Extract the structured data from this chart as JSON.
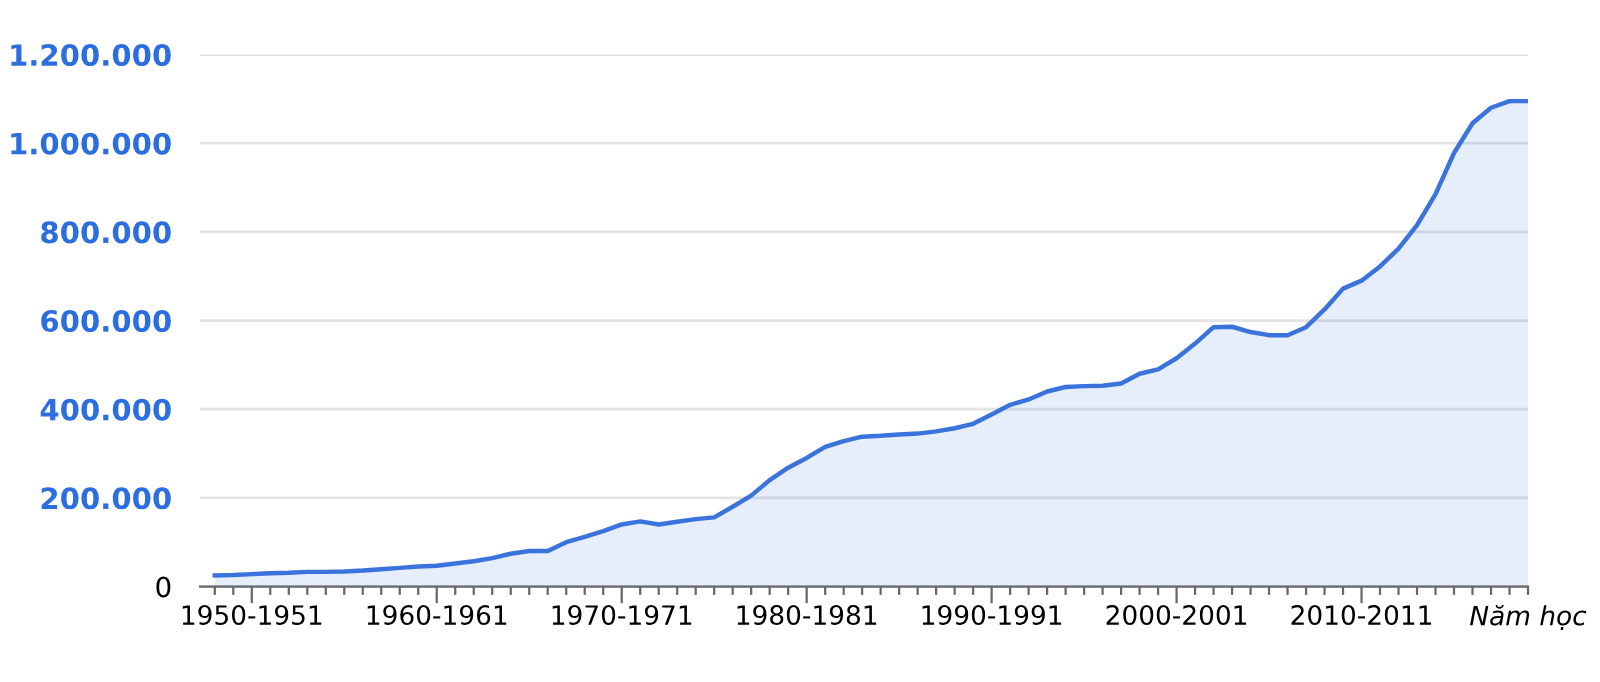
{
  "chart_data": {
    "type": "area",
    "xlabel": "Năm học",
    "categories": [
      null,
      null,
      "1950-1951",
      null,
      null,
      null,
      null,
      null,
      null,
      null,
      null,
      null,
      "1960-1961",
      null,
      null,
      null,
      null,
      null,
      null,
      null,
      null,
      null,
      "1970-1971",
      null,
      null,
      null,
      null,
      null,
      null,
      null,
      null,
      null,
      "1980-1981",
      null,
      null,
      null,
      null,
      null,
      null,
      null,
      null,
      null,
      "1990-1991",
      null,
      null,
      null,
      null,
      null,
      null,
      null,
      null,
      null,
      "2000-2001",
      null,
      null,
      null,
      null,
      null,
      null,
      null,
      null,
      null,
      "2010-2011",
      null,
      null,
      null,
      null,
      null,
      null,
      null,
      null,
      null
    ],
    "series": [
      {
        "color": "#3b73dd",
        "values": [
          25000,
          26000,
          28000,
          30000,
          31000,
          33000,
          33000,
          34000,
          36000,
          39000,
          42000,
          45000,
          47000,
          52000,
          57000,
          64000,
          74000,
          80000,
          80000,
          100000,
          112000,
          125000,
          140000,
          147000,
          140000,
          146000,
          152000,
          156000,
          180000,
          205000,
          240000,
          268000,
          290000,
          315000,
          328000,
          338000,
          340000,
          343000,
          345000,
          350000,
          357000,
          367000,
          388000,
          410000,
          422000,
          440000,
          450000,
          452000,
          453000,
          458000,
          480000,
          490000,
          515000,
          548000,
          585000,
          586000,
          574000,
          567000,
          567000,
          585000,
          625000,
          672000,
          690000,
          722000,
          762000,
          815000,
          885000,
          978000,
          1045000,
          1080000,
          1095000,
          1095000
        ]
      }
    ],
    "ylim": [
      0,
      1200000
    ],
    "yticks": [
      0,
      {
        "value": 200000,
        "label": "200.000"
      },
      {
        "value": 400000,
        "label": "400.000"
      },
      {
        "value": 600000,
        "label": "600.000"
      },
      {
        "value": 800000,
        "label": "800.000"
      },
      {
        "value": 1000000,
        "label": "1.000.000"
      },
      {
        "value": 1200000,
        "label": "1.200.000"
      }
    ],
    "grid": "y"
  }
}
